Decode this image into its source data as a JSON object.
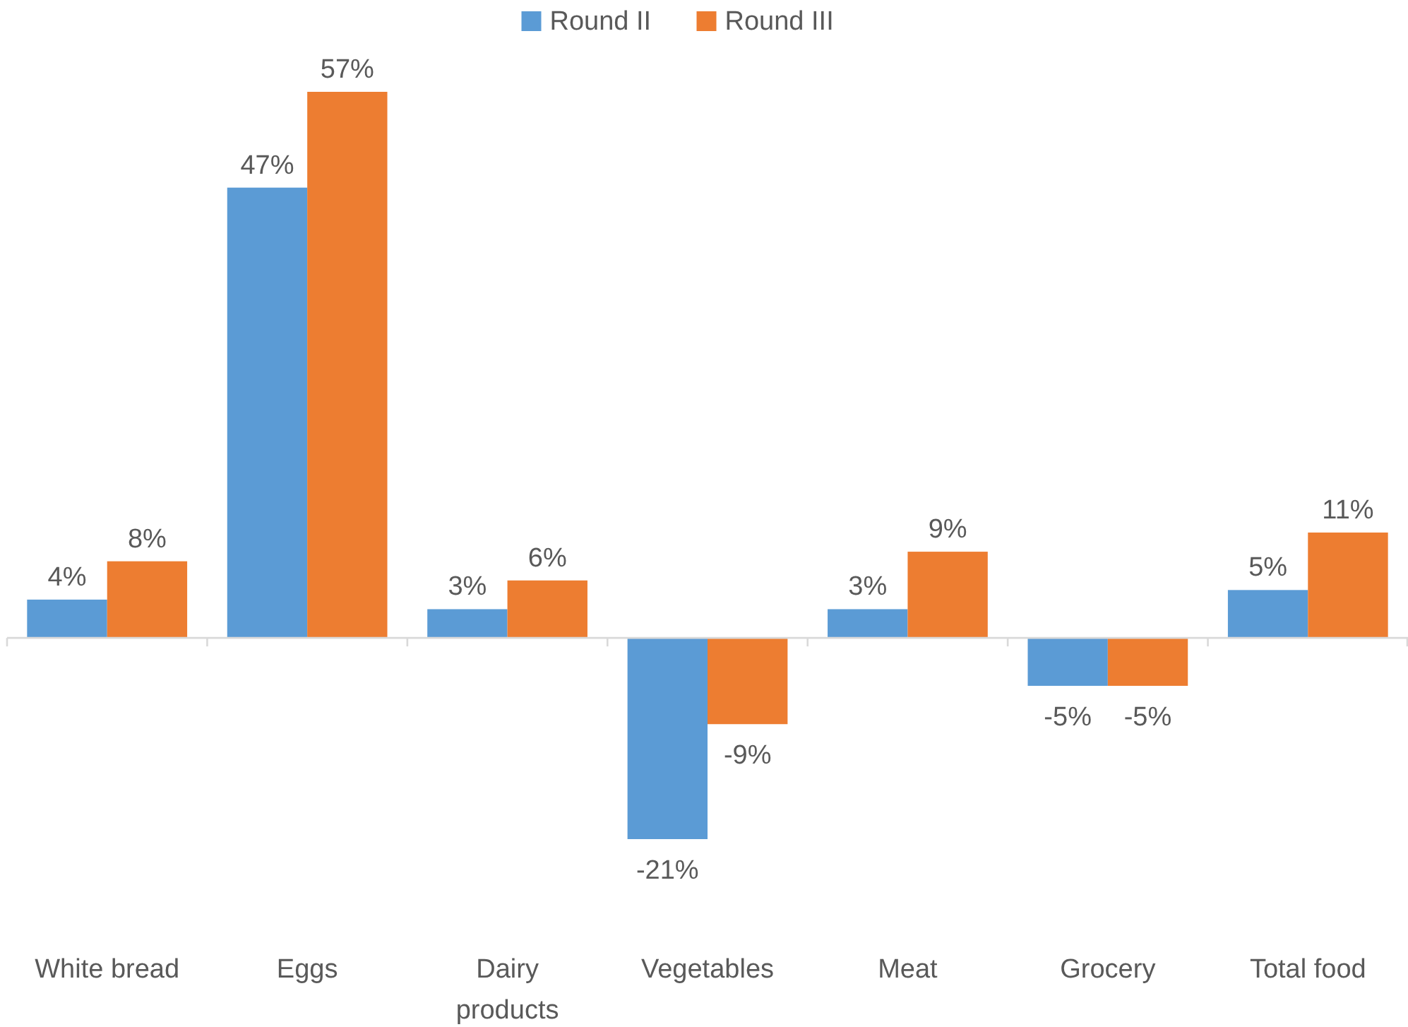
{
  "chart_data": {
    "type": "bar",
    "categories": [
      "White bread",
      "Eggs",
      "Dairy products",
      "Vegetables",
      "Meat",
      "Grocery",
      "Total food"
    ],
    "series": [
      {
        "name": "Round II",
        "color": "#5b9bd5",
        "values": [
          4,
          47,
          3,
          -21,
          3,
          -5,
          5
        ],
        "value_labels": [
          "4%",
          "47%",
          "3%",
          "-21%",
          "3%",
          "-5%",
          "5%"
        ]
      },
      {
        "name": "Round III",
        "color": "#ed7d31",
        "values": [
          8,
          57,
          6,
          -9,
          9,
          -5,
          11
        ],
        "value_labels": [
          "8%",
          "57%",
          "6%",
          "-9%",
          "9%",
          "-5%",
          "11%"
        ]
      }
    ],
    "legend": "top"
  }
}
